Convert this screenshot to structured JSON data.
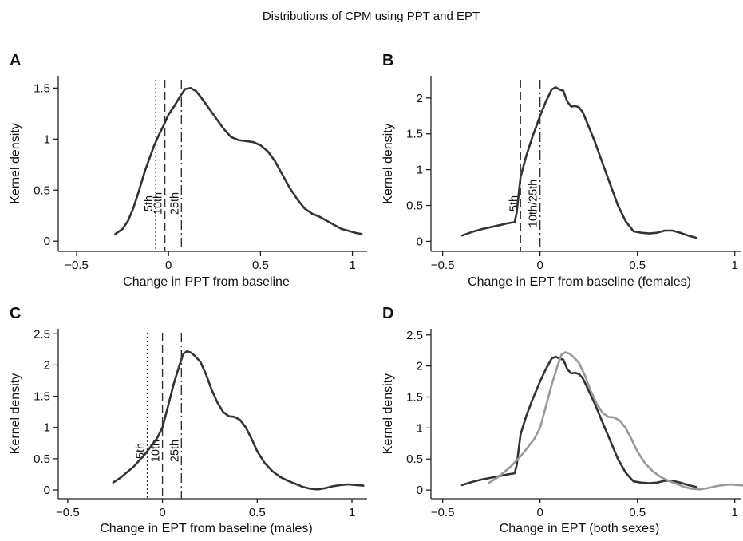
{
  "figure_title": "Distributions of CPM using PPT and EPT",
  "chart_data": [
    {
      "type": "line",
      "panel": "A",
      "xlabel": "Change in PPT from baseline",
      "ylabel": "Kernel density",
      "xlim": [
        -0.6,
        1.08
      ],
      "ylim": [
        -0.1,
        1.62
      ],
      "xticks": [
        -0.5,
        0,
        0.5,
        1
      ],
      "xtick_labels": [
        "−0.5",
        "0",
        "0.5",
        "1"
      ],
      "yticks": [
        0,
        0.5,
        1,
        1.5
      ],
      "ytick_labels": [
        "0",
        "0.5",
        "1",
        "1.5"
      ],
      "series": [
        {
          "color": "#333333",
          "x": [
            -0.29,
            -0.25,
            -0.22,
            -0.19,
            -0.16,
            -0.13,
            -0.1,
            -0.08,
            -0.05,
            -0.02,
            0.0,
            0.03,
            0.06,
            0.09,
            0.12,
            0.15,
            0.18,
            0.22,
            0.26,
            0.3,
            0.34,
            0.38,
            0.42,
            0.46,
            0.5,
            0.54,
            0.58,
            0.62,
            0.66,
            0.7,
            0.74,
            0.78,
            0.82,
            0.86,
            0.9,
            0.94,
            0.98,
            1.02,
            1.05
          ],
          "y": [
            0.07,
            0.12,
            0.2,
            0.33,
            0.5,
            0.68,
            0.83,
            0.93,
            1.05,
            1.16,
            1.24,
            1.32,
            1.41,
            1.49,
            1.5,
            1.47,
            1.4,
            1.3,
            1.2,
            1.1,
            1.02,
            0.99,
            0.98,
            0.97,
            0.94,
            0.88,
            0.78,
            0.65,
            0.52,
            0.41,
            0.32,
            0.27,
            0.24,
            0.2,
            0.16,
            0.12,
            0.1,
            0.08,
            0.07
          ]
        }
      ],
      "vlines": [
        {
          "x": -0.07,
          "style": "dotted",
          "label": "5th"
        },
        {
          "x": -0.02,
          "style": "dashed",
          "label": "10th"
        },
        {
          "x": 0.07,
          "style": "dashdot",
          "label": "25th"
        }
      ]
    },
    {
      "type": "line",
      "panel": "B",
      "xlabel": "Change in EPT from baseline (females)",
      "ylabel": "Kernel density",
      "xlim": [
        -0.56,
        1.03
      ],
      "ylim": [
        -0.14,
        2.31
      ],
      "xticks": [
        -0.5,
        0,
        0.5,
        1
      ],
      "xtick_labels": [
        "−0.5",
        "0",
        "0.5",
        "1"
      ],
      "yticks": [
        0,
        0.5,
        1,
        1.5,
        2
      ],
      "ytick_labels": [
        "0",
        "0.5",
        "1",
        "1.5",
        "2"
      ],
      "series": [
        {
          "color": "#333333",
          "x": [
            -0.4,
            -0.35,
            -0.3,
            -0.25,
            -0.2,
            -0.17,
            -0.15,
            -0.13,
            -0.12,
            -0.1,
            -0.07,
            -0.04,
            -0.02,
            0.0,
            0.03,
            0.06,
            0.08,
            0.1,
            0.12,
            0.14,
            0.16,
            0.18,
            0.2,
            0.22,
            0.25,
            0.28,
            0.32,
            0.36,
            0.4,
            0.44,
            0.48,
            0.52,
            0.56,
            0.6,
            0.64,
            0.68,
            0.72,
            0.76,
            0.8
          ],
          "y": [
            0.08,
            0.13,
            0.17,
            0.2,
            0.23,
            0.25,
            0.26,
            0.27,
            0.4,
            0.9,
            1.2,
            1.45,
            1.6,
            1.75,
            1.95,
            2.12,
            2.15,
            2.12,
            2.1,
            1.95,
            1.88,
            1.89,
            1.87,
            1.8,
            1.6,
            1.4,
            1.1,
            0.8,
            0.5,
            0.28,
            0.14,
            0.12,
            0.11,
            0.12,
            0.15,
            0.15,
            0.12,
            0.08,
            0.05
          ]
        }
      ],
      "vlines": [
        {
          "x": -0.1,
          "style": "dashed",
          "label": "5th"
        },
        {
          "x": 0.0,
          "style": "dashdot",
          "label": "10th/25th"
        }
      ]
    },
    {
      "type": "line",
      "panel": "C",
      "xlabel": "Change in EPT from baseline (males)",
      "ylabel": "Kernel density",
      "xlim": [
        -0.55,
        1.08
      ],
      "ylim": [
        -0.14,
        2.58
      ],
      "xticks": [
        -0.5,
        0,
        0.5,
        1
      ],
      "xtick_labels": [
        "−0.5",
        "0",
        "0.5",
        "1"
      ],
      "yticks": [
        0,
        0.5,
        1,
        1.5,
        2,
        2.5
      ],
      "ytick_labels": [
        "0",
        "0.5",
        "1",
        "1.5",
        "2",
        "2.5"
      ],
      "series": [
        {
          "color": "#333333",
          "x": [
            -0.26,
            -0.22,
            -0.18,
            -0.15,
            -0.12,
            -0.09,
            -0.06,
            -0.03,
            0.0,
            0.03,
            0.06,
            0.09,
            0.11,
            0.13,
            0.15,
            0.17,
            0.2,
            0.23,
            0.26,
            0.29,
            0.32,
            0.35,
            0.38,
            0.41,
            0.44,
            0.47,
            0.5,
            0.54,
            0.58,
            0.62,
            0.66,
            0.7,
            0.74,
            0.78,
            0.82,
            0.86,
            0.9,
            0.94,
            0.98,
            1.02,
            1.06
          ],
          "y": [
            0.12,
            0.2,
            0.3,
            0.38,
            0.48,
            0.58,
            0.7,
            0.82,
            1.0,
            1.35,
            1.7,
            2.0,
            2.18,
            2.22,
            2.2,
            2.15,
            2.05,
            1.85,
            1.6,
            1.4,
            1.25,
            1.18,
            1.17,
            1.12,
            1.0,
            0.82,
            0.62,
            0.43,
            0.3,
            0.21,
            0.15,
            0.1,
            0.05,
            0.02,
            0.01,
            0.03,
            0.06,
            0.08,
            0.09,
            0.08,
            0.07
          ]
        }
      ],
      "vlines": [
        {
          "x": -0.08,
          "style": "dotted",
          "label": "5th"
        },
        {
          "x": 0.0,
          "style": "dashed",
          "label": "10th"
        },
        {
          "x": 0.1,
          "style": "dashdot",
          "label": "25th"
        }
      ]
    },
    {
      "type": "line",
      "panel": "D",
      "xlabel": "Change in EPT (both sexes)",
      "ylabel": "Kernel density",
      "xlim": [
        -0.56,
        1.03
      ],
      "ylim": [
        -0.14,
        2.6
      ],
      "xticks": [
        -0.5,
        0,
        0.5,
        1
      ],
      "xtick_labels": [
        "−0.5",
        "0",
        "0.5",
        "1"
      ],
      "yticks": [
        0,
        0.5,
        1,
        1.5,
        2,
        2.5
      ],
      "ytick_labels": [
        "0",
        "0.5",
        "1",
        "1.5",
        "2",
        "2.5"
      ],
      "series": [
        {
          "color": "#333333",
          "x": [
            -0.4,
            -0.35,
            -0.3,
            -0.25,
            -0.2,
            -0.17,
            -0.15,
            -0.13,
            -0.12,
            -0.1,
            -0.07,
            -0.04,
            -0.02,
            0.0,
            0.03,
            0.06,
            0.08,
            0.1,
            0.12,
            0.14,
            0.16,
            0.18,
            0.2,
            0.22,
            0.25,
            0.28,
            0.32,
            0.36,
            0.4,
            0.44,
            0.48,
            0.52,
            0.56,
            0.6,
            0.64,
            0.68,
            0.72,
            0.76,
            0.8
          ],
          "y": [
            0.08,
            0.13,
            0.17,
            0.2,
            0.23,
            0.25,
            0.26,
            0.27,
            0.4,
            0.9,
            1.2,
            1.45,
            1.6,
            1.75,
            1.95,
            2.12,
            2.15,
            2.12,
            2.1,
            1.95,
            1.88,
            1.89,
            1.87,
            1.8,
            1.6,
            1.4,
            1.1,
            0.8,
            0.5,
            0.28,
            0.14,
            0.12,
            0.11,
            0.12,
            0.15,
            0.15,
            0.12,
            0.08,
            0.05
          ]
        },
        {
          "color": "#999999",
          "x": [
            -0.26,
            -0.22,
            -0.18,
            -0.15,
            -0.12,
            -0.09,
            -0.06,
            -0.03,
            0.0,
            0.03,
            0.06,
            0.09,
            0.11,
            0.13,
            0.15,
            0.17,
            0.2,
            0.23,
            0.26,
            0.29,
            0.32,
            0.35,
            0.38,
            0.41,
            0.44,
            0.47,
            0.5,
            0.54,
            0.58,
            0.62,
            0.66,
            0.7,
            0.74,
            0.78,
            0.82,
            0.86,
            0.9,
            0.94,
            0.98,
            1.02,
            1.06
          ],
          "y": [
            0.12,
            0.2,
            0.3,
            0.38,
            0.48,
            0.58,
            0.7,
            0.82,
            1.0,
            1.35,
            1.7,
            2.0,
            2.18,
            2.22,
            2.2,
            2.15,
            2.05,
            1.85,
            1.6,
            1.4,
            1.25,
            1.18,
            1.17,
            1.12,
            1.0,
            0.82,
            0.62,
            0.43,
            0.3,
            0.21,
            0.15,
            0.1,
            0.05,
            0.02,
            0.01,
            0.03,
            0.06,
            0.08,
            0.09,
            0.08,
            0.07
          ]
        }
      ],
      "vlines": []
    }
  ]
}
